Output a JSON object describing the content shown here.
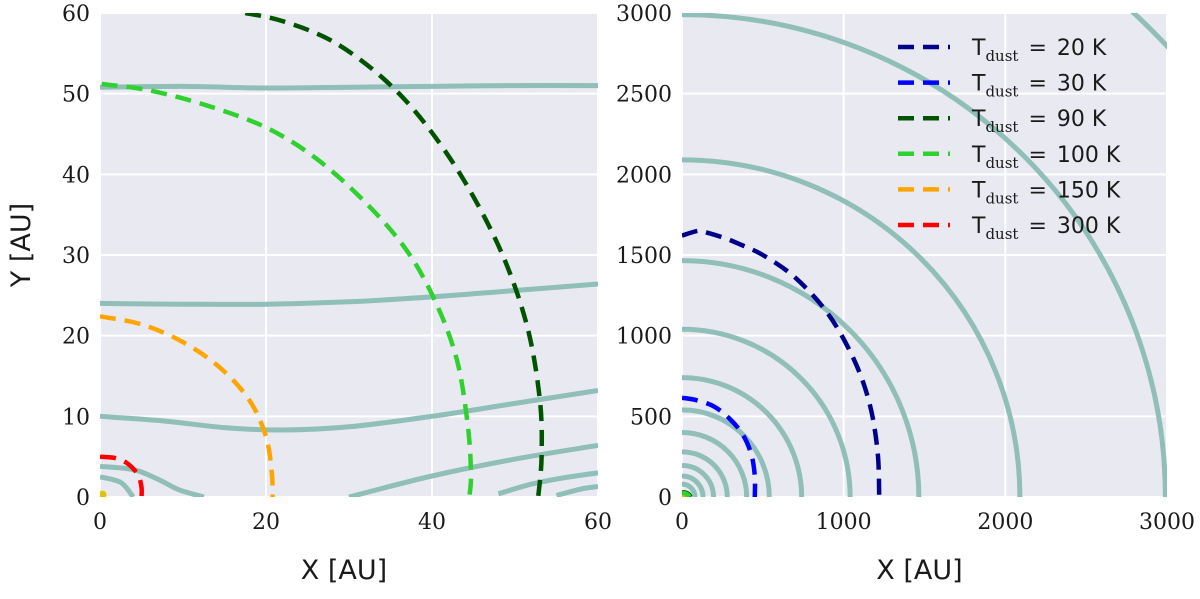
{
  "chart_data": [
    {
      "type": "line",
      "id": "left",
      "xlabel": "X [AU]",
      "ylabel": "Y [AU]",
      "xlim": [
        0,
        60
      ],
      "ylim": [
        0,
        60
      ],
      "xticks": [
        "0",
        "20",
        "40",
        "60"
      ],
      "yticks": [
        "0",
        "10",
        "20",
        "30",
        "40",
        "50",
        "60"
      ],
      "grid": true,
      "density_contours": [
        [
          [
            0,
            50.8
          ],
          [
            10,
            50.9
          ],
          [
            20,
            50.7
          ],
          [
            30,
            50.8
          ],
          [
            40,
            50.9
          ],
          [
            50,
            51
          ],
          [
            60,
            51
          ]
        ],
        [
          [
            0,
            24
          ],
          [
            10,
            23.9
          ],
          [
            20,
            23.9
          ],
          [
            30,
            24.2
          ],
          [
            40,
            24.8
          ],
          [
            50,
            25.6
          ],
          [
            60,
            26.4
          ]
        ],
        [
          [
            0,
            10
          ],
          [
            8,
            9.4
          ],
          [
            15,
            8.6
          ],
          [
            22,
            8.3
          ],
          [
            30,
            8.7
          ],
          [
            40,
            10
          ],
          [
            50,
            11.6
          ],
          [
            60,
            13.2
          ]
        ],
        [
          [
            0,
            3.8
          ],
          [
            4,
            3.4
          ],
          [
            7,
            2.2
          ],
          [
            9.5,
            0.9
          ],
          [
            12.5,
            0
          ]
        ],
        [
          [
            0,
            2.5
          ],
          [
            2.5,
            1.8
          ],
          [
            4,
            0
          ]
        ],
        [
          [
            30,
            0
          ],
          [
            40,
            2.6
          ],
          [
            50,
            4.7
          ],
          [
            60,
            6.4
          ]
        ],
        [
          [
            48,
            0.4
          ],
          [
            52,
            1.6
          ],
          [
            56,
            2.4
          ],
          [
            60,
            3
          ]
        ],
        [
          [
            55,
            0.2
          ],
          [
            58,
            1
          ],
          [
            60,
            1.3
          ]
        ]
      ],
      "series": [
        {
          "name": "T_dust = 90 K",
          "color": "#005400",
          "points": [
            [
              17.5,
              60
            ],
            [
              22,
              59
            ],
            [
              28,
              56.5
            ],
            [
              34,
              52
            ],
            [
              39,
              46.5
            ],
            [
              44,
              39
            ],
            [
              48.5,
              30
            ],
            [
              51.5,
              21
            ],
            [
              53,
              12
            ],
            [
              53.2,
              5
            ],
            [
              52.8,
              0
            ]
          ]
        },
        {
          "name": "T_dust = 100 K",
          "color": "#2ed12e",
          "points": [
            [
              0.2,
              51.2
            ],
            [
              6,
              50.4
            ],
            [
              13,
              48.5
            ],
            [
              20,
              45.8
            ],
            [
              26,
              42
            ],
            [
              32,
              36.5
            ],
            [
              37,
              30.5
            ],
            [
              40.5,
              24
            ],
            [
              43,
              17
            ],
            [
              44.3,
              9
            ],
            [
              44.7,
              3
            ],
            [
              44.5,
              0
            ]
          ]
        },
        {
          "name": "T_dust = 150 K",
          "color": "#ffa500",
          "points": [
            [
              0,
              22.4
            ],
            [
              5,
              21.4
            ],
            [
              10,
              19.2
            ],
            [
              14.5,
              16
            ],
            [
              18,
              12
            ],
            [
              20,
              7.5
            ],
            [
              20.7,
              3
            ],
            [
              20.8,
              0
            ]
          ]
        },
        {
          "name": "T_dust = 300 K",
          "color": "#ff0000",
          "points": [
            [
              0,
              5
            ],
            [
              2,
              4.8
            ],
            [
              3.5,
              4
            ],
            [
              4.6,
              2.7
            ],
            [
              5,
              1.2
            ],
            [
              5,
              0
            ]
          ]
        }
      ]
    },
    {
      "type": "line",
      "id": "right",
      "xlabel": "X [AU]",
      "ylabel": "",
      "xlim": [
        0,
        3000
      ],
      "ylim": [
        0,
        3000
      ],
      "xticks": [
        "0",
        "1000",
        "2000",
        "3000"
      ],
      "yticks": [
        "0",
        "500",
        "1000",
        "1500",
        "2000",
        "2500",
        "3000"
      ],
      "grid": true,
      "legend_position": "top-right",
      "density_radii": [
        80,
        130,
        195,
        280,
        400,
        540,
        740,
        1040,
        1465,
        2090,
        2990,
        4100
      ],
      "series": [
        {
          "name": "T_dust = 20 K",
          "color": "#00008b",
          "points": [
            [
              0,
              1620
            ],
            [
              100,
              1650
            ],
            [
              150,
              1640
            ],
            [
              250,
              1610
            ],
            [
              350,
              1570
            ],
            [
              500,
              1500
            ],
            [
              700,
              1360
            ],
            [
              900,
              1140
            ],
            [
              1060,
              860
            ],
            [
              1160,
              580
            ],
            [
              1210,
              280
            ],
            [
              1220,
              0
            ]
          ]
        },
        {
          "name": "T_dust = 30 K",
          "color": "#0000ff",
          "points": [
            [
              0,
              615
            ],
            [
              90,
              600
            ],
            [
              200,
              560
            ],
            [
              300,
              480
            ],
            [
              380,
              380
            ],
            [
              430,
              260
            ],
            [
              450,
              130
            ],
            [
              450,
              0
            ]
          ]
        },
        {
          "name": "T_dust = 90 K",
          "color": "#005400",
          "points": [
            [
              0,
              30
            ],
            [
              25,
              26
            ],
            [
              45,
              14
            ],
            [
              52,
              0
            ]
          ]
        },
        {
          "name": "T_dust = 100 K",
          "color": "#2ed12e",
          "points": [
            [
              0,
              26
            ],
            [
              22,
              22
            ],
            [
              40,
              12
            ],
            [
              45,
              0
            ]
          ]
        }
      ]
    }
  ],
  "legend": [
    {
      "label": "T",
      "sub": "dust",
      "eq": "=",
      "value": "20 K",
      "color": "#00008b"
    },
    {
      "label": "T",
      "sub": "dust",
      "eq": "=",
      "value": "30 K",
      "color": "#0000ff"
    },
    {
      "label": "T",
      "sub": "dust",
      "eq": "=",
      "value": "90 K",
      "color": "#005400"
    },
    {
      "label": "T",
      "sub": "dust",
      "eq": "=",
      "value": "100 K",
      "color": "#2ed12e"
    },
    {
      "label": "T",
      "sub": "dust",
      "eq": "=",
      "value": "150 K",
      "color": "#ffa500"
    },
    {
      "label": "T",
      "sub": "dust",
      "eq": "=",
      "value": "300 K",
      "color": "#ff0000"
    }
  ],
  "colors": {
    "panel_bg": "#e9e9f1",
    "grid": "#ffffff",
    "density_contour": "#8fbfb8"
  }
}
